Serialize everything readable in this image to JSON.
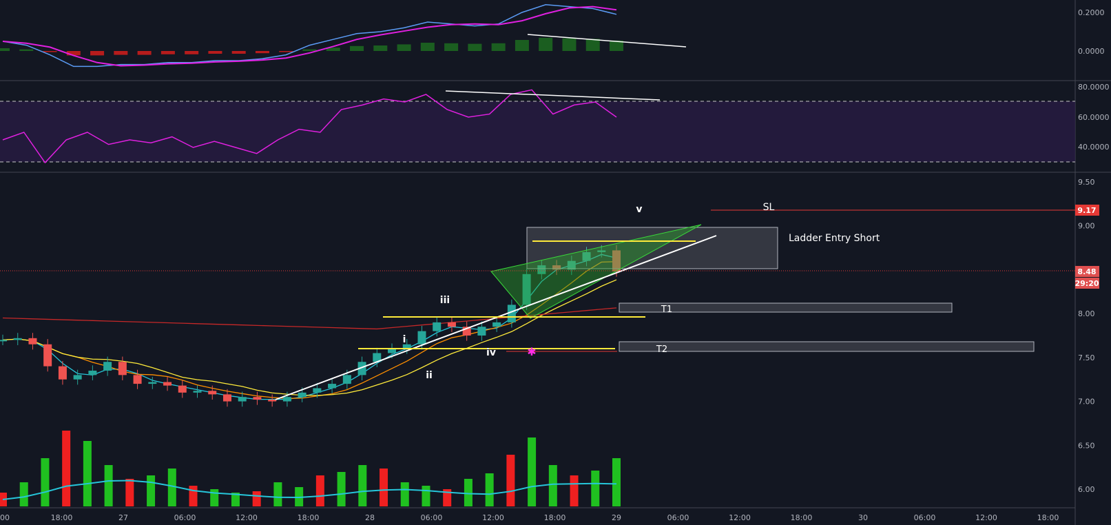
{
  "chart_data": {
    "type": "candlestick",
    "price_axis": {
      "ticks": [
        "9.50",
        "9.00",
        "8.50",
        "8.00",
        "7.50",
        "7.00",
        "6.50",
        "6.00"
      ],
      "range": [
        5.8,
        9.6
      ],
      "last_price_label": "8.48",
      "countdown_label": "29:20",
      "sl_label": "9.17"
    },
    "macd_axis": {
      "ticks": [
        "0.2000",
        "0.0000"
      ]
    },
    "rsi_axis": {
      "ticks": [
        "80.0000",
        "60.0000",
        "40.0000"
      ],
      "upper_band": 70,
      "lower_band": 30
    },
    "time_axis": [
      "00",
      "18:00",
      "27",
      "06:00",
      "12:00",
      "18:00",
      "28",
      "06:00",
      "12:00",
      "18:00",
      "29",
      "06:00",
      "12:00",
      "18:00",
      "30",
      "06:00",
      "12:00",
      "18:00"
    ],
    "annotations": {
      "wave_labels": [
        "i",
        "ii",
        "iii",
        "iv",
        "v"
      ],
      "sl_text": "SL",
      "box_text": "Ladder Entry Short",
      "target1": "T1",
      "target2": "T2"
    },
    "levels": {
      "stop_loss": 9.17,
      "entry_box": [
        8.5,
        8.98
      ],
      "yellow_lines": [
        8.82,
        7.96,
        7.6
      ],
      "target1": [
        8.02,
        8.11
      ],
      "target2": [
        7.56,
        7.68
      ]
    },
    "series": [
      {
        "name": "price",
        "values": [
          7.7,
          7.72,
          7.65,
          7.4,
          7.25,
          7.3,
          7.35,
          7.45,
          7.3,
          7.2,
          7.22,
          7.18,
          7.1,
          7.12,
          7.08,
          7.0,
          7.05,
          7.02,
          7.0,
          7.05,
          7.1,
          7.15,
          7.2,
          7.3,
          7.45,
          7.55,
          7.6,
          7.65,
          7.8,
          7.9,
          7.85,
          7.75,
          7.85,
          7.9,
          8.1,
          8.45,
          8.55,
          8.5,
          8.6,
          8.7,
          8.72,
          8.48
        ]
      }
    ],
    "macd": [
      0.05,
      0.03,
      -0.02,
      -0.08,
      -0.08,
      -0.07,
      -0.07,
      -0.06,
      -0.06,
      -0.05,
      -0.05,
      -0.04,
      -0.02,
      0.03,
      0.06,
      0.09,
      0.1,
      0.12,
      0.15,
      0.14,
      0.13,
      0.14,
      0.2,
      0.24,
      0.23,
      0.22,
      0.19
    ],
    "rsi": [
      45,
      50,
      30,
      45,
      50,
      42,
      45,
      43,
      47,
      40,
      44,
      40,
      36,
      45,
      52,
      50,
      65,
      68,
      72,
      70,
      75,
      65,
      60,
      62,
      75,
      78,
      62,
      68,
      70,
      60
    ],
    "volume": [
      20,
      35,
      70,
      110,
      95,
      60,
      40,
      45,
      55,
      30,
      25,
      20,
      22,
      35,
      28,
      45,
      50,
      60,
      55,
      35,
      30,
      25,
      40,
      48,
      75,
      100,
      60,
      45,
      52,
      70
    ],
    "volume_label": "",
    "legend": ""
  }
}
